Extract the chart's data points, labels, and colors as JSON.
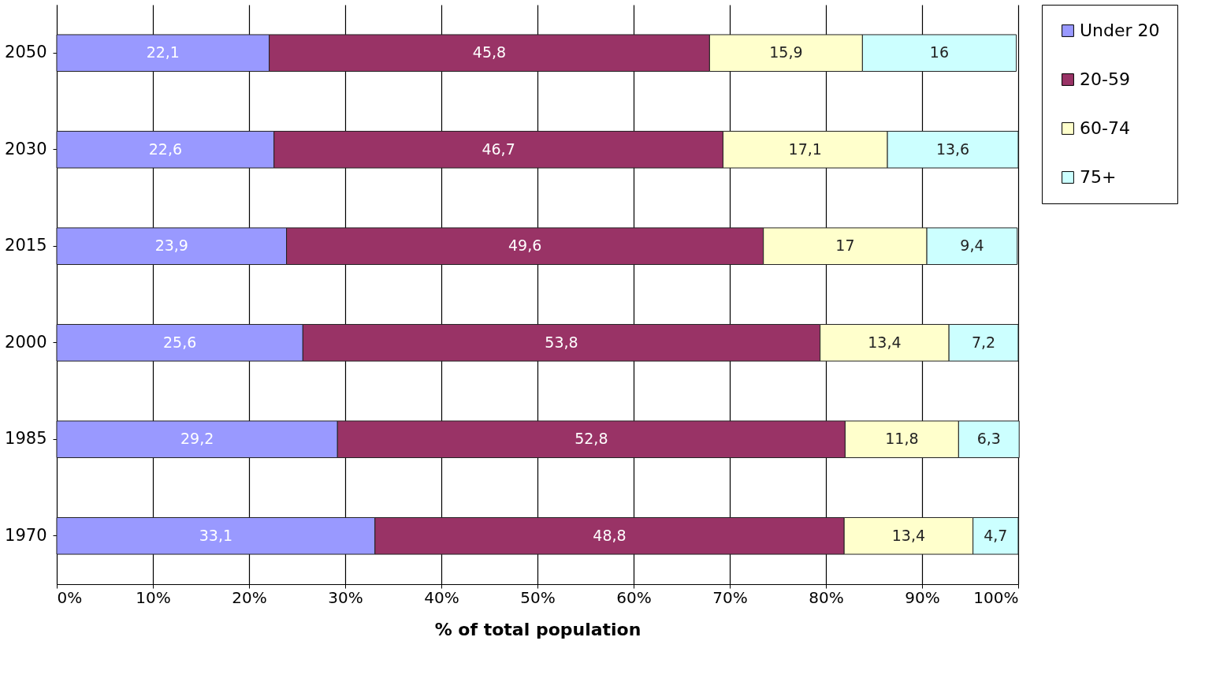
{
  "chart_data": {
    "type": "bar",
    "orientation": "horizontal",
    "stacked": true,
    "xlabel": "% of total population",
    "categories": [
      "2050",
      "2030",
      "2015",
      "2000",
      "1985",
      "1970"
    ],
    "series": [
      {
        "name": "Under 20",
        "color": "#9999ff",
        "values": [
          22.1,
          22.6,
          23.9,
          25.6,
          29.2,
          33.1
        ],
        "value_labels": [
          "22,1",
          "22,6",
          "23,9",
          "25,6",
          "29,2",
          "33,1"
        ]
      },
      {
        "name": "20-59",
        "color": "#993366",
        "values": [
          45.8,
          46.7,
          49.6,
          53.8,
          52.8,
          48.8
        ],
        "value_labels": [
          "45,8",
          "46,7",
          "49,6",
          "53,8",
          "52,8",
          "48,8"
        ]
      },
      {
        "name": "60-74",
        "color": "#ffffcc",
        "values": [
          15.9,
          17.1,
          17,
          13.4,
          11.8,
          13.4
        ],
        "value_labels": [
          "15,9",
          "17,1",
          "17",
          "13,4",
          "11,8",
          "13,4"
        ]
      },
      {
        "name": "75+",
        "color": "#ccffff",
        "values": [
          16,
          13.6,
          9.4,
          7.2,
          6.3,
          4.7
        ],
        "value_labels": [
          "16",
          "13,6",
          "9,4",
          "7,2",
          "6,3",
          "4,7"
        ]
      }
    ],
    "xlim": [
      0,
      100
    ],
    "xticks": [
      {
        "value": 0,
        "label": "0%"
      },
      {
        "value": 10,
        "label": "10%"
      },
      {
        "value": 20,
        "label": "20%"
      },
      {
        "value": 30,
        "label": "30%"
      },
      {
        "value": 40,
        "label": "40%"
      },
      {
        "value": 50,
        "label": "50%"
      },
      {
        "value": 60,
        "label": "60%"
      },
      {
        "value": 70,
        "label": "70%"
      },
      {
        "value": 80,
        "label": "80%"
      },
      {
        "value": 90,
        "label": "90%"
      },
      {
        "value": 100,
        "label": "100%"
      }
    ],
    "grid": "x",
    "legend": "right"
  }
}
